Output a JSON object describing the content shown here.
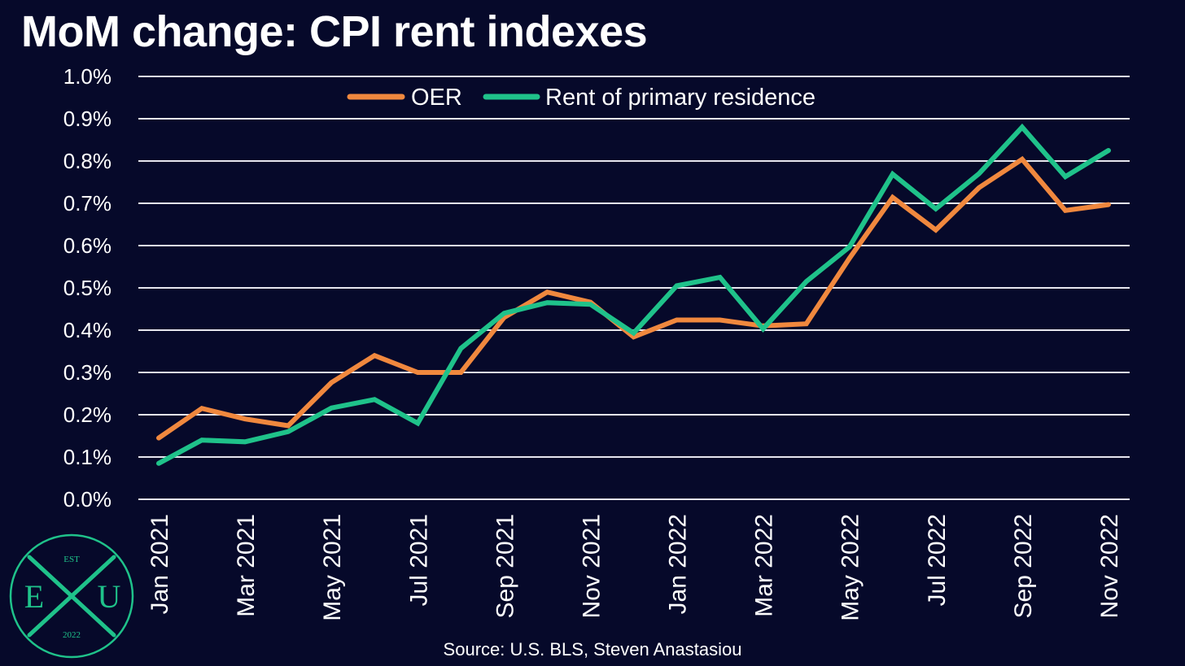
{
  "chart_data": {
    "type": "line",
    "title": "MoM change: CPI rent indexes",
    "x": [
      "Jan 2021",
      "Feb 2021",
      "Mar 2021",
      "Apr 2021",
      "May 2021",
      "Jun 2021",
      "Jul 2021",
      "Aug 2021",
      "Sep 2021",
      "Oct 2021",
      "Nov 2021",
      "Dec 2021",
      "Jan 2022",
      "Feb 2022",
      "Mar 2022",
      "Apr 2022",
      "May 2022",
      "Jun 2022",
      "Jul 2022",
      "Aug 2022",
      "Sep 2022",
      "Oct 2022",
      "Nov 2022"
    ],
    "tick_labels": [
      "Jan 2021",
      "Mar 2021",
      "May 2021",
      "Jul 2021",
      "Sep 2021",
      "Nov 2021",
      "Jan 2022",
      "Mar 2022",
      "May 2022",
      "Jul 2022",
      "Sep 2022",
      "Nov 2022"
    ],
    "y_ticks": [
      "0.0%",
      "0.1%",
      "0.2%",
      "0.3%",
      "0.4%",
      "0.5%",
      "0.6%",
      "0.7%",
      "0.8%",
      "0.9%",
      "1.0%"
    ],
    "ylim": [
      0,
      1.0
    ],
    "yunit": "%",
    "grid": true,
    "legend_position": "top",
    "series": [
      {
        "name": "OER",
        "color": "#f0883e",
        "values": [
          0.145,
          0.215,
          0.19,
          0.174,
          0.276,
          0.34,
          0.3,
          0.3,
          0.43,
          0.49,
          0.466,
          0.384,
          0.424,
          0.424,
          0.41,
          0.415,
          0.57,
          0.714,
          0.637,
          0.737,
          0.804,
          0.683,
          0.697
        ]
      },
      {
        "name": "Rent of primary residence",
        "color": "#1fc28a",
        "values": [
          0.085,
          0.14,
          0.136,
          0.16,
          0.216,
          0.236,
          0.18,
          0.357,
          0.44,
          0.465,
          0.461,
          0.393,
          0.505,
          0.525,
          0.403,
          0.515,
          0.597,
          0.769,
          0.687,
          0.77,
          0.88,
          0.763,
          0.825
        ]
      }
    ]
  },
  "source": "Source: U.S. BLS, Steven Anastasiou",
  "logo": {
    "top": "EST",
    "left": "E",
    "right": "U",
    "bottom": "2022",
    "color": "#1fc28a"
  }
}
